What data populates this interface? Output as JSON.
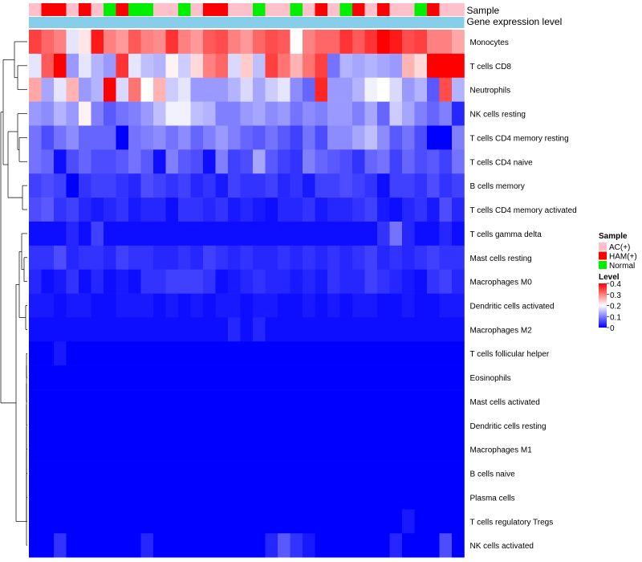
{
  "chart_data": {
    "type": "heatmap",
    "title": "",
    "annotations": {
      "sample_label": "Sample",
      "expression_label": "Gene expression level"
    },
    "sample_groups": [
      "AC(+)",
      "HAM(+)",
      "HAM(+)",
      "AC(+)",
      "HAM(+)",
      "AC(+)",
      "Normal",
      "HAM(+)",
      "Normal",
      "Normal",
      "AC(+)",
      "AC(+)",
      "Normal",
      "AC(+)",
      "HAM(+)",
      "HAM(+)",
      "AC(+)",
      "AC(+)",
      "Normal",
      "AC(+)",
      "AC(+)",
      "Normal",
      "AC(+)",
      "HAM(+)",
      "AC(+)",
      "Normal",
      "HAM(+)",
      "AC(+)",
      "HAM(+)",
      "AC(+)",
      "AC(+)",
      "Normal",
      "HAM(+)",
      "AC(+)",
      "AC(+)"
    ],
    "rows": [
      "Monocytes",
      "T cells CD8",
      "Neutrophils",
      "NK cells resting",
      "T cells CD4 memory resting",
      "T cells CD4 naive",
      "B cells memory",
      "T cells CD4 memory activated",
      "T cells gamma delta",
      "Mast cells resting",
      "Macrophages M0",
      "Dendritic cells activated",
      "Macrophages M2",
      "T cells follicular helper",
      "Eosinophils",
      "Mast cells activated",
      "Dendritic cells resting",
      "Macrophages M1",
      "B cells naive",
      "Plasma cells",
      "T cells regulatory  Tregs",
      "NK cells activated"
    ],
    "values": [
      [
        0.35,
        0.32,
        0.3,
        0.18,
        0.22,
        0.38,
        0.3,
        0.28,
        0.33,
        0.3,
        0.29,
        0.36,
        0.3,
        0.28,
        0.33,
        0.34,
        0.3,
        0.28,
        0.32,
        0.34,
        0.33,
        0.2,
        0.3,
        0.32,
        0.32,
        0.36,
        0.33,
        0.36,
        0.4,
        0.38,
        0.34,
        0.35,
        0.3,
        0.3,
        0.27
      ],
      [
        0.18,
        0.33,
        0.4,
        0.12,
        0.18,
        0.14,
        0.12,
        0.36,
        0.18,
        0.15,
        0.14,
        0.21,
        0.16,
        0.23,
        0.3,
        0.32,
        0.17,
        0.24,
        0.15,
        0.35,
        0.31,
        0.26,
        0.31,
        0.35,
        0.09,
        0.14,
        0.13,
        0.14,
        0.13,
        0.12,
        0.26,
        0.23,
        0.4,
        0.4,
        0.4
      ],
      [
        0.27,
        0.13,
        0.18,
        0.26,
        0.12,
        0.14,
        0.4,
        0.17,
        0.31,
        0.2,
        0.26,
        0.16,
        0.18,
        0.12,
        0.12,
        0.12,
        0.14,
        0.17,
        0.13,
        0.16,
        0.18,
        0.11,
        0.08,
        0.37,
        0.12,
        0.12,
        0.14,
        0.19,
        0.2,
        0.17,
        0.12,
        0.14,
        0.07,
        0.34,
        0.14
      ],
      [
        0.12,
        0.11,
        0.14,
        0.12,
        0.21,
        0.1,
        0.07,
        0.09,
        0.1,
        0.12,
        0.15,
        0.19,
        0.19,
        0.15,
        0.14,
        0.1,
        0.1,
        0.12,
        0.13,
        0.11,
        0.12,
        0.09,
        0.11,
        0.1,
        0.12,
        0.12,
        0.1,
        0.13,
        0.08,
        0.16,
        0.13,
        0.1,
        0.08,
        0.1,
        0.03
      ],
      [
        0.09,
        0.06,
        0.09,
        0.11,
        0.08,
        0.08,
        0.08,
        0.0,
        0.09,
        0.1,
        0.11,
        0.09,
        0.11,
        0.08,
        0.1,
        0.12,
        0.1,
        0.08,
        0.07,
        0.09,
        0.07,
        0.05,
        0.09,
        0.06,
        0.11,
        0.11,
        0.13,
        0.15,
        0.11,
        0.07,
        0.09,
        0.06,
        0.0,
        0.0,
        0.1
      ],
      [
        0.09,
        0.08,
        0.01,
        0.06,
        0.08,
        0.06,
        0.06,
        0.07,
        0.09,
        0.07,
        0.01,
        0.1,
        0.07,
        0.06,
        0.01,
        0.1,
        0.05,
        0.06,
        0.13,
        0.07,
        0.05,
        0.04,
        0.1,
        0.08,
        0.07,
        0.06,
        0.04,
        0.08,
        0.09,
        0.05,
        0.08,
        0.06,
        0.07,
        0.05,
        0.09
      ],
      [
        0.05,
        0.06,
        0.05,
        0.0,
        0.04,
        0.05,
        0.05,
        0.04,
        0.03,
        0.06,
        0.05,
        0.04,
        0.05,
        0.03,
        0.04,
        0.02,
        0.05,
        0.04,
        0.04,
        0.05,
        0.03,
        0.04,
        0.02,
        0.05,
        0.05,
        0.06,
        0.05,
        0.04,
        0.01,
        0.05,
        0.05,
        0.04,
        0.06,
        0.04,
        0.05
      ],
      [
        0.06,
        0.07,
        0.04,
        0.05,
        0.03,
        0.02,
        0.03,
        0.04,
        0.02,
        0.03,
        0.03,
        0.01,
        0.04,
        0.04,
        0.03,
        0.04,
        0.02,
        0.03,
        0.02,
        0.01,
        0.03,
        0.03,
        0.04,
        0.02,
        0.03,
        0.03,
        0.04,
        0.05,
        0.02,
        0.01,
        0.03,
        0.04,
        0.02,
        0.06,
        0.03
      ],
      [
        0.01,
        0.01,
        0.01,
        0.03,
        0.01,
        0.05,
        0.01,
        0.01,
        0.01,
        0.01,
        0.01,
        0.01,
        0.01,
        0.01,
        0.01,
        0.01,
        0.01,
        0.01,
        0.01,
        0.01,
        0.01,
        0.01,
        0.01,
        0.01,
        0.01,
        0.01,
        0.01,
        0.01,
        0.04,
        0.09,
        0.03,
        0.01,
        0.01,
        0.03,
        0.01
      ],
      [
        0.04,
        0.04,
        0.06,
        0.03,
        0.04,
        0.04,
        0.03,
        0.05,
        0.04,
        0.04,
        0.03,
        0.03,
        0.04,
        0.03,
        0.05,
        0.04,
        0.03,
        0.04,
        0.03,
        0.03,
        0.04,
        0.03,
        0.04,
        0.03,
        0.04,
        0.03,
        0.04,
        0.05,
        0.03,
        0.04,
        0.03,
        0.04,
        0.05,
        0.04,
        0.04
      ],
      [
        0.03,
        0.01,
        0.02,
        0.04,
        0.01,
        0.03,
        0.01,
        0.02,
        0.01,
        0.04,
        0.04,
        0.05,
        0.05,
        0.05,
        0.04,
        0.01,
        0.02,
        0.03,
        0.04,
        0.03,
        0.03,
        0.02,
        0.03,
        0.02,
        0.04,
        0.03,
        0.03,
        0.05,
        0.04,
        0.03,
        0.02,
        0.01,
        0.04,
        0.05,
        0.03
      ],
      [
        0.02,
        0.02,
        0.01,
        0.02,
        0.02,
        0.01,
        0.01,
        0.02,
        0.02,
        0.02,
        0.01,
        0.02,
        0.01,
        0.02,
        0.01,
        0.02,
        0.02,
        0.01,
        0.02,
        0.02,
        0.01,
        0.01,
        0.02,
        0.01,
        0.02,
        0.01,
        0.02,
        0.02,
        0.01,
        0.01,
        0.02,
        0.01,
        0.01,
        0.02,
        0.02
      ],
      [
        0.01,
        0.01,
        0.01,
        0.01,
        0.01,
        0.01,
        0.01,
        0.01,
        0.01,
        0.01,
        0.01,
        0.01,
        0.01,
        0.01,
        0.01,
        0.01,
        0.03,
        0.01,
        0.03,
        0.01,
        0.01,
        0.01,
        0.01,
        0.01,
        0.01,
        0.01,
        0.01,
        0.01,
        0.01,
        0.01,
        0.01,
        0.01,
        0.01,
        0.01,
        0.01
      ],
      [
        0.0,
        0.0,
        0.02,
        0.0,
        0.0,
        0.0,
        0.0,
        0.0,
        0.0,
        0.0,
        0.0,
        0.0,
        0.0,
        0.0,
        0.0,
        0.0,
        0.0,
        0.0,
        0.0,
        0.0,
        0.0,
        0.0,
        0.0,
        0.0,
        0.0,
        0.0,
        0.0,
        0.0,
        0.0,
        0.0,
        0.0,
        0.0,
        0.0,
        0.0,
        0.0
      ],
      [
        0.0,
        0.0,
        0.0,
        0.0,
        0.0,
        0.0,
        0.0,
        0.0,
        0.0,
        0.0,
        0.0,
        0.0,
        0.0,
        0.0,
        0.0,
        0.0,
        0.0,
        0.0,
        0.0,
        0.0,
        0.0,
        0.0,
        0.0,
        0.0,
        0.0,
        0.0,
        0.0,
        0.0,
        0.0,
        0.0,
        0.0,
        0.0,
        0.0,
        0.0,
        0.0
      ],
      [
        0.0,
        0.0,
        0.0,
        0.0,
        0.0,
        0.0,
        0.0,
        0.0,
        0.0,
        0.0,
        0.0,
        0.0,
        0.0,
        0.0,
        0.0,
        0.0,
        0.0,
        0.0,
        0.0,
        0.0,
        0.0,
        0.0,
        0.0,
        0.0,
        0.0,
        0.0,
        0.0,
        0.0,
        0.0,
        0.0,
        0.0,
        0.0,
        0.0,
        0.0,
        0.0
      ],
      [
        0.0,
        0.0,
        0.0,
        0.0,
        0.0,
        0.0,
        0.0,
        0.0,
        0.0,
        0.0,
        0.0,
        0.0,
        0.0,
        0.0,
        0.0,
        0.0,
        0.0,
        0.0,
        0.0,
        0.0,
        0.0,
        0.0,
        0.0,
        0.0,
        0.0,
        0.0,
        0.0,
        0.0,
        0.0,
        0.0,
        0.0,
        0.0,
        0.0,
        0.0,
        0.0
      ],
      [
        0.0,
        0.0,
        0.0,
        0.0,
        0.0,
        0.0,
        0.0,
        0.0,
        0.0,
        0.0,
        0.0,
        0.0,
        0.0,
        0.0,
        0.0,
        0.0,
        0.0,
        0.0,
        0.0,
        0.0,
        0.0,
        0.0,
        0.0,
        0.0,
        0.0,
        0.0,
        0.0,
        0.0,
        0.0,
        0.0,
        0.0,
        0.0,
        0.0,
        0.0,
        0.0
      ],
      [
        0.0,
        0.0,
        0.0,
        0.0,
        0.0,
        0.0,
        0.0,
        0.0,
        0.0,
        0.0,
        0.0,
        0.0,
        0.0,
        0.0,
        0.0,
        0.0,
        0.0,
        0.0,
        0.0,
        0.0,
        0.0,
        0.0,
        0.0,
        0.0,
        0.0,
        0.0,
        0.0,
        0.0,
        0.0,
        0.0,
        0.0,
        0.0,
        0.0,
        0.0,
        0.0
      ],
      [
        0.0,
        0.0,
        0.0,
        0.0,
        0.0,
        0.0,
        0.0,
        0.0,
        0.0,
        0.0,
        0.0,
        0.0,
        0.0,
        0.0,
        0.0,
        0.0,
        0.0,
        0.0,
        0.0,
        0.0,
        0.0,
        0.0,
        0.0,
        0.0,
        0.0,
        0.0,
        0.0,
        0.0,
        0.0,
        0.0,
        0.0,
        0.0,
        0.0,
        0.0,
        0.0
      ],
      [
        0.0,
        0.0,
        0.0,
        0.0,
        0.0,
        0.0,
        0.0,
        0.0,
        0.0,
        0.0,
        0.0,
        0.0,
        0.0,
        0.0,
        0.0,
        0.0,
        0.0,
        0.0,
        0.0,
        0.0,
        0.0,
        0.0,
        0.0,
        0.0,
        0.0,
        0.0,
        0.0,
        0.0,
        0.0,
        0.0,
        0.02,
        0.0,
        0.0,
        0.0,
        0.0
      ],
      [
        0.0,
        0.0,
        0.04,
        0.0,
        0.0,
        0.0,
        0.0,
        0.0,
        0.0,
        0.03,
        0.0,
        0.0,
        0.0,
        0.0,
        0.0,
        0.0,
        0.0,
        0.0,
        0.0,
        0.03,
        0.07,
        0.04,
        0.02,
        0.0,
        0.0,
        0.0,
        0.0,
        0.0,
        0.0,
        0.03,
        0.0,
        0.0,
        0.0,
        0.06,
        0.0
      ]
    ],
    "legend_sample": {
      "title": "Sample",
      "entries": [
        {
          "label": "AC(+)",
          "color": "#FFC0CB"
        },
        {
          "label": "HAM(+)",
          "color": "#FF0000"
        },
        {
          "label": "Normal",
          "color": "#00EE00"
        }
      ]
    },
    "legend_level": {
      "title": "Level",
      "range": [
        0,
        0.4
      ],
      "ticks": [
        "0.4",
        "0.3",
        "0.2",
        "0.1",
        "0"
      ]
    },
    "colors": {
      "low": "#0000FF",
      "mid": "#FFFFFF",
      "high": "#FF0000",
      "expression_bar": "#87CEEB"
    }
  }
}
